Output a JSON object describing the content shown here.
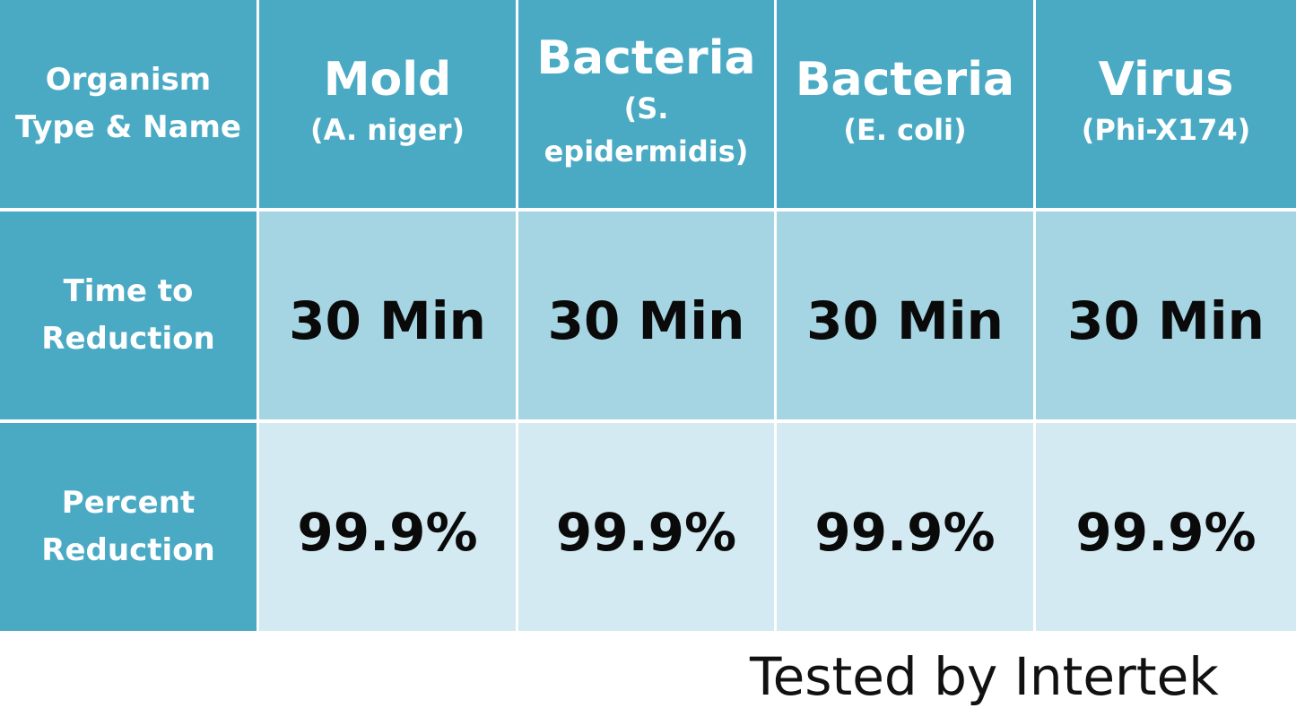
{
  "table": {
    "corner_label": "Organism\nType & Name",
    "organisms": [
      {
        "type": "Mold",
        "name": "(A. niger)"
      },
      {
        "type": "Bacteria",
        "name": "(S. epidermidis)"
      },
      {
        "type": "Bacteria",
        "name": "(E. coli)"
      },
      {
        "type": "Virus",
        "name": "(Phi-X174)"
      }
    ],
    "rows": [
      {
        "label": "Time to\nReduction",
        "values": [
          "30 Min",
          "30 Min",
          "30 Min",
          "30 Min"
        ]
      },
      {
        "label": "Percent\nReduction",
        "values": [
          "99.9%",
          "99.9%",
          "99.9%",
          "99.9%"
        ]
      }
    ]
  },
  "footer": {
    "text": "Tested by Intertek"
  },
  "colors": {
    "header_bg": "#4aaac4",
    "row1_bg": "#a5d5e3",
    "row2_bg": "#d3eaf2",
    "header_text": "#ffffff",
    "value_text": "#0a0a0a"
  }
}
